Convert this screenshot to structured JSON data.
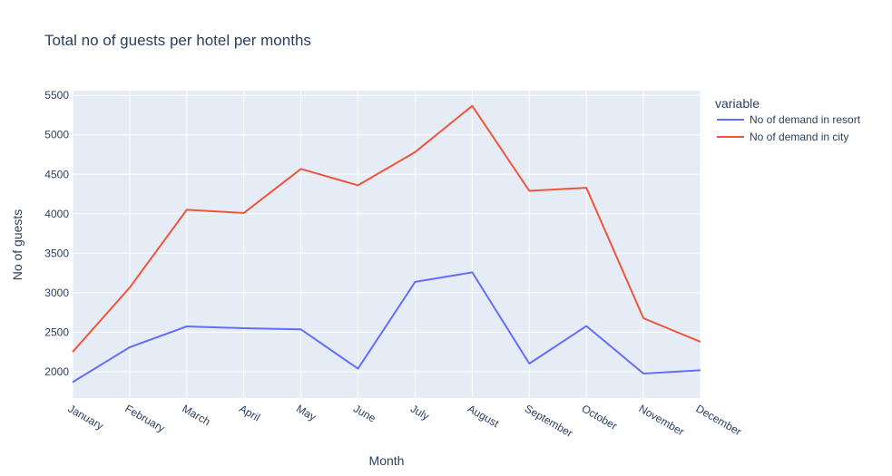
{
  "chart_data": {
    "type": "line",
    "title": "Total no of guests per hotel per months",
    "xlabel": "Month",
    "ylabel": "No of guests",
    "categories": [
      "January",
      "February",
      "March",
      "April",
      "May",
      "June",
      "July",
      "August",
      "September",
      "October",
      "November",
      "December"
    ],
    "ylim": [
      1665,
      5560
    ],
    "yticks": [
      2000,
      2500,
      3000,
      3500,
      4000,
      4500,
      5000,
      5500
    ],
    "grid": true,
    "legend": {
      "title": "variable",
      "placement": "right"
    },
    "series": [
      {
        "name": "No of demand in resort",
        "color": "#636efa",
        "values": [
          1866,
          2308,
          2573,
          2550,
          2535,
          2037,
          3137,
          3257,
          2102,
          2577,
          1975,
          2017
        ]
      },
      {
        "name": "No of demand in city",
        "color": "#ef553b",
        "values": [
          2249,
          3064,
          4050,
          4010,
          4568,
          4361,
          4782,
          5367,
          4290,
          4330,
          2676,
          2377
        ]
      }
    ]
  }
}
